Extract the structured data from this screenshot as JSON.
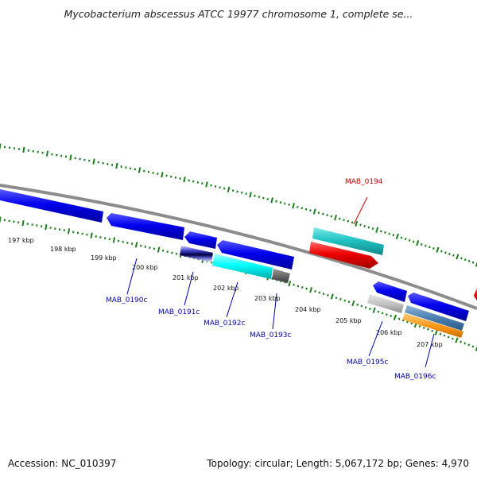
{
  "title": "Mycobacterium abscessus ATCC 19977 chromosome 1, complete se...",
  "footer": {
    "accession": "Accession: NC_010397",
    "summary": "Topology: circular; Length: 5,067,172 bp; Genes: 4,970"
  },
  "colors": {
    "backbone": "#8c8c8c",
    "tick": "#1a7f1a",
    "forward_label": "#cc0000",
    "reverse_label": "#0000aa"
  },
  "kbp_labels": [
    "197 kbp",
    "198 kbp",
    "199 kbp",
    "200 kbp",
    "201 kbp",
    "202 kbp",
    "203 kbp",
    "204 kbp",
    "205 kbp",
    "206 kbp",
    "207 kbp"
  ],
  "genes": [
    {
      "label": "MAB_0190c",
      "strand": "reverse",
      "color": "#0000ee"
    },
    {
      "label": "MAB_0191c",
      "strand": "reverse",
      "color": "#0000ee"
    },
    {
      "label": "MAB_0192c",
      "strand": "reverse",
      "color": "#0000ee"
    },
    {
      "label": "MAB_0193c",
      "strand": "reverse",
      "color": "#0000ee"
    },
    {
      "label": "MAB_0194",
      "strand": "forward",
      "color": "#00c8c8"
    },
    {
      "label": "MAB_0195c",
      "strand": "reverse",
      "color": "#0000ee"
    },
    {
      "label": "MAB_0196c",
      "strand": "reverse",
      "color": "#0000ee"
    }
  ]
}
